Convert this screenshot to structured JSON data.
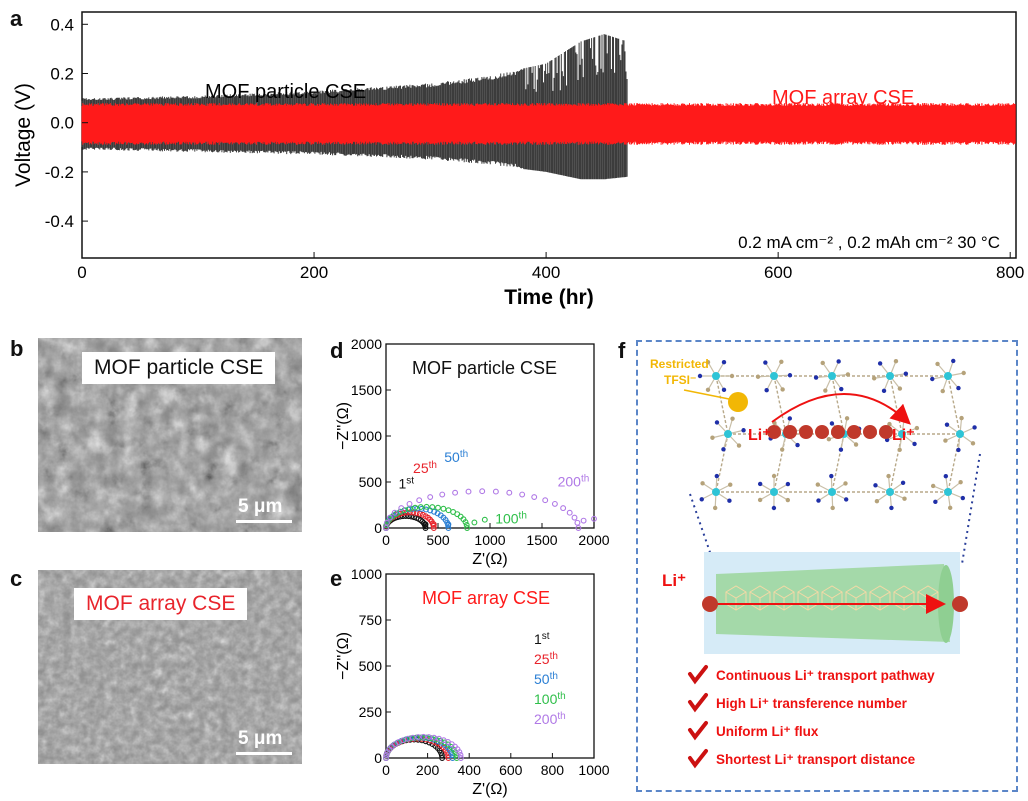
{
  "panel_labels": {
    "a": "a",
    "b": "b",
    "c": "c",
    "d": "d",
    "e": "e",
    "f": "f"
  },
  "colors": {
    "particle": "#3c3c3c",
    "array": "#ff1a1a",
    "first": "#111111",
    "c25": "#e8242c",
    "c50": "#2b7fd4",
    "c100": "#2fbf4a",
    "c200": "#b079e6",
    "frame": "#5b86c8",
    "tfsi": "#f2b705",
    "check": "#cc1111",
    "box_blue": "#d6ebf7",
    "tube": "#9fd7a0"
  },
  "chart_data": [
    {
      "type": "line",
      "panel": "a",
      "xlabel": "Time (hr)",
      "ylabel": "Voltage (V)",
      "xlim": [
        0,
        805
      ],
      "ylim": [
        -0.55,
        0.45
      ],
      "xticks": [
        0,
        200,
        400,
        600,
        800
      ],
      "yticks": [
        0.4,
        0.2,
        0.0,
        -0.2,
        -0.4
      ],
      "ytick_labels": [
        "0.4",
        "0.2",
        "0.0",
        "-0.2",
        "-0.4"
      ],
      "series": [
        {
          "name": "MOF particle CSE",
          "color_key": "particle",
          "envelope": {
            "x": [
              0,
              100,
              200,
              300,
              350,
              400,
              430,
              450,
              470,
              480
            ],
            "upper": [
              0.1,
              0.11,
              0.13,
              0.16,
              0.19,
              0.24,
              0.33,
              0.36,
              0.33,
              0.0
            ],
            "lower": [
              -0.11,
              -0.12,
              -0.13,
              -0.15,
              -0.17,
              -0.2,
              -0.23,
              -0.23,
              -0.22,
              0.0
            ]
          }
        },
        {
          "name": "MOF array CSE",
          "color_key": "array",
          "envelope": {
            "x": [
              0,
              805
            ],
            "upper": [
              0.08,
              0.08
            ],
            "lower": [
              -0.09,
              -0.09
            ]
          }
        }
      ],
      "annotation": "0.2 mA cm⁻² , 0.2 mAh cm⁻² 30 °C"
    },
    {
      "type": "scatter",
      "panel": "d",
      "title": "MOF particle CSE",
      "xlabel": "Z'(Ω)",
      "ylabel": "−Z''(Ω)",
      "xlim": [
        0,
        2000
      ],
      "ylim": [
        0,
        2000
      ],
      "xticks": [
        0,
        500,
        1000,
        1500,
        2000
      ],
      "yticks": [
        0,
        500,
        1000,
        1500,
        2000
      ],
      "series": [
        {
          "name": "1",
          "sup": "st",
          "color_key": "first",
          "arc": {
            "start": 0,
            "end": 380,
            "peak": 130
          },
          "tail": [
            [
              380,
              40
            ]
          ],
          "label_pos": [
            120,
            430
          ]
        },
        {
          "name": "25",
          "sup": "th",
          "color_key": "c25",
          "arc": {
            "start": 0,
            "end": 460,
            "peak": 170
          },
          "tail": [
            [
              460,
              40
            ]
          ],
          "label_pos": [
            260,
            600
          ]
        },
        {
          "name": "50",
          "sup": "th",
          "color_key": "c50",
          "arc": {
            "start": 0,
            "end": 600,
            "peak": 210
          },
          "tail": [
            [
              600,
              40
            ]
          ],
          "label_pos": [
            560,
            720
          ]
        },
        {
          "name": "100",
          "sup": "th",
          "color_key": "c100",
          "arc": {
            "start": 0,
            "end": 780,
            "peak": 230
          },
          "tail": [
            [
              850,
              60
            ],
            [
              950,
              90
            ]
          ],
          "label_pos": [
            1050,
            50
          ]
        },
        {
          "name": "200",
          "sup": "th",
          "color_key": "c200",
          "arc": {
            "start": 0,
            "end": 1850,
            "peak": 400
          },
          "tail": [
            [
              1900,
              80
            ],
            [
              2000,
              100
            ]
          ],
          "label_pos": [
            1650,
            450
          ]
        }
      ]
    },
    {
      "type": "scatter",
      "panel": "e",
      "title": "MOF array CSE",
      "xlabel": "Z'(Ω)",
      "ylabel": "−Z''(Ω)",
      "xlim": [
        0,
        1000
      ],
      "ylim": [
        0,
        1000
      ],
      "xticks": [
        0,
        200,
        400,
        600,
        800,
        1000
      ],
      "yticks": [
        0,
        250,
        500,
        750,
        1000
      ],
      "legend_position": "center-right",
      "series": [
        {
          "name": "1",
          "sup": "st",
          "color_key": "first",
          "arc": {
            "start": 0,
            "end": 270,
            "peak": 100
          }
        },
        {
          "name": "25",
          "sup": "th",
          "color_key": "c25",
          "arc": {
            "start": 0,
            "end": 300,
            "peak": 105
          }
        },
        {
          "name": "50",
          "sup": "th",
          "color_key": "c50",
          "arc": {
            "start": 0,
            "end": 320,
            "peak": 110
          }
        },
        {
          "name": "100",
          "sup": "th",
          "color_key": "c100",
          "arc": {
            "start": 0,
            "end": 340,
            "peak": 112
          }
        },
        {
          "name": "200",
          "sup": "th",
          "color_key": "c200",
          "arc": {
            "start": 0,
            "end": 360,
            "peak": 115
          }
        }
      ]
    }
  ],
  "sem_b": {
    "label": "MOF particle CSE",
    "scale": "5 μm"
  },
  "sem_c": {
    "label": "MOF array CSE",
    "scale": "5 μm"
  },
  "schematic": {
    "restricted_line1": "Restricted",
    "restricted_line2": "TFSI⁻",
    "li_left": "Li⁺",
    "li_right": "Li⁺",
    "li_tube": "Li⁺",
    "features": [
      "Continuous Li⁺ transport pathway",
      "High Li⁺ transference number",
      "Uniform Li⁺ flux",
      "Shortest Li⁺ transport distance"
    ]
  }
}
